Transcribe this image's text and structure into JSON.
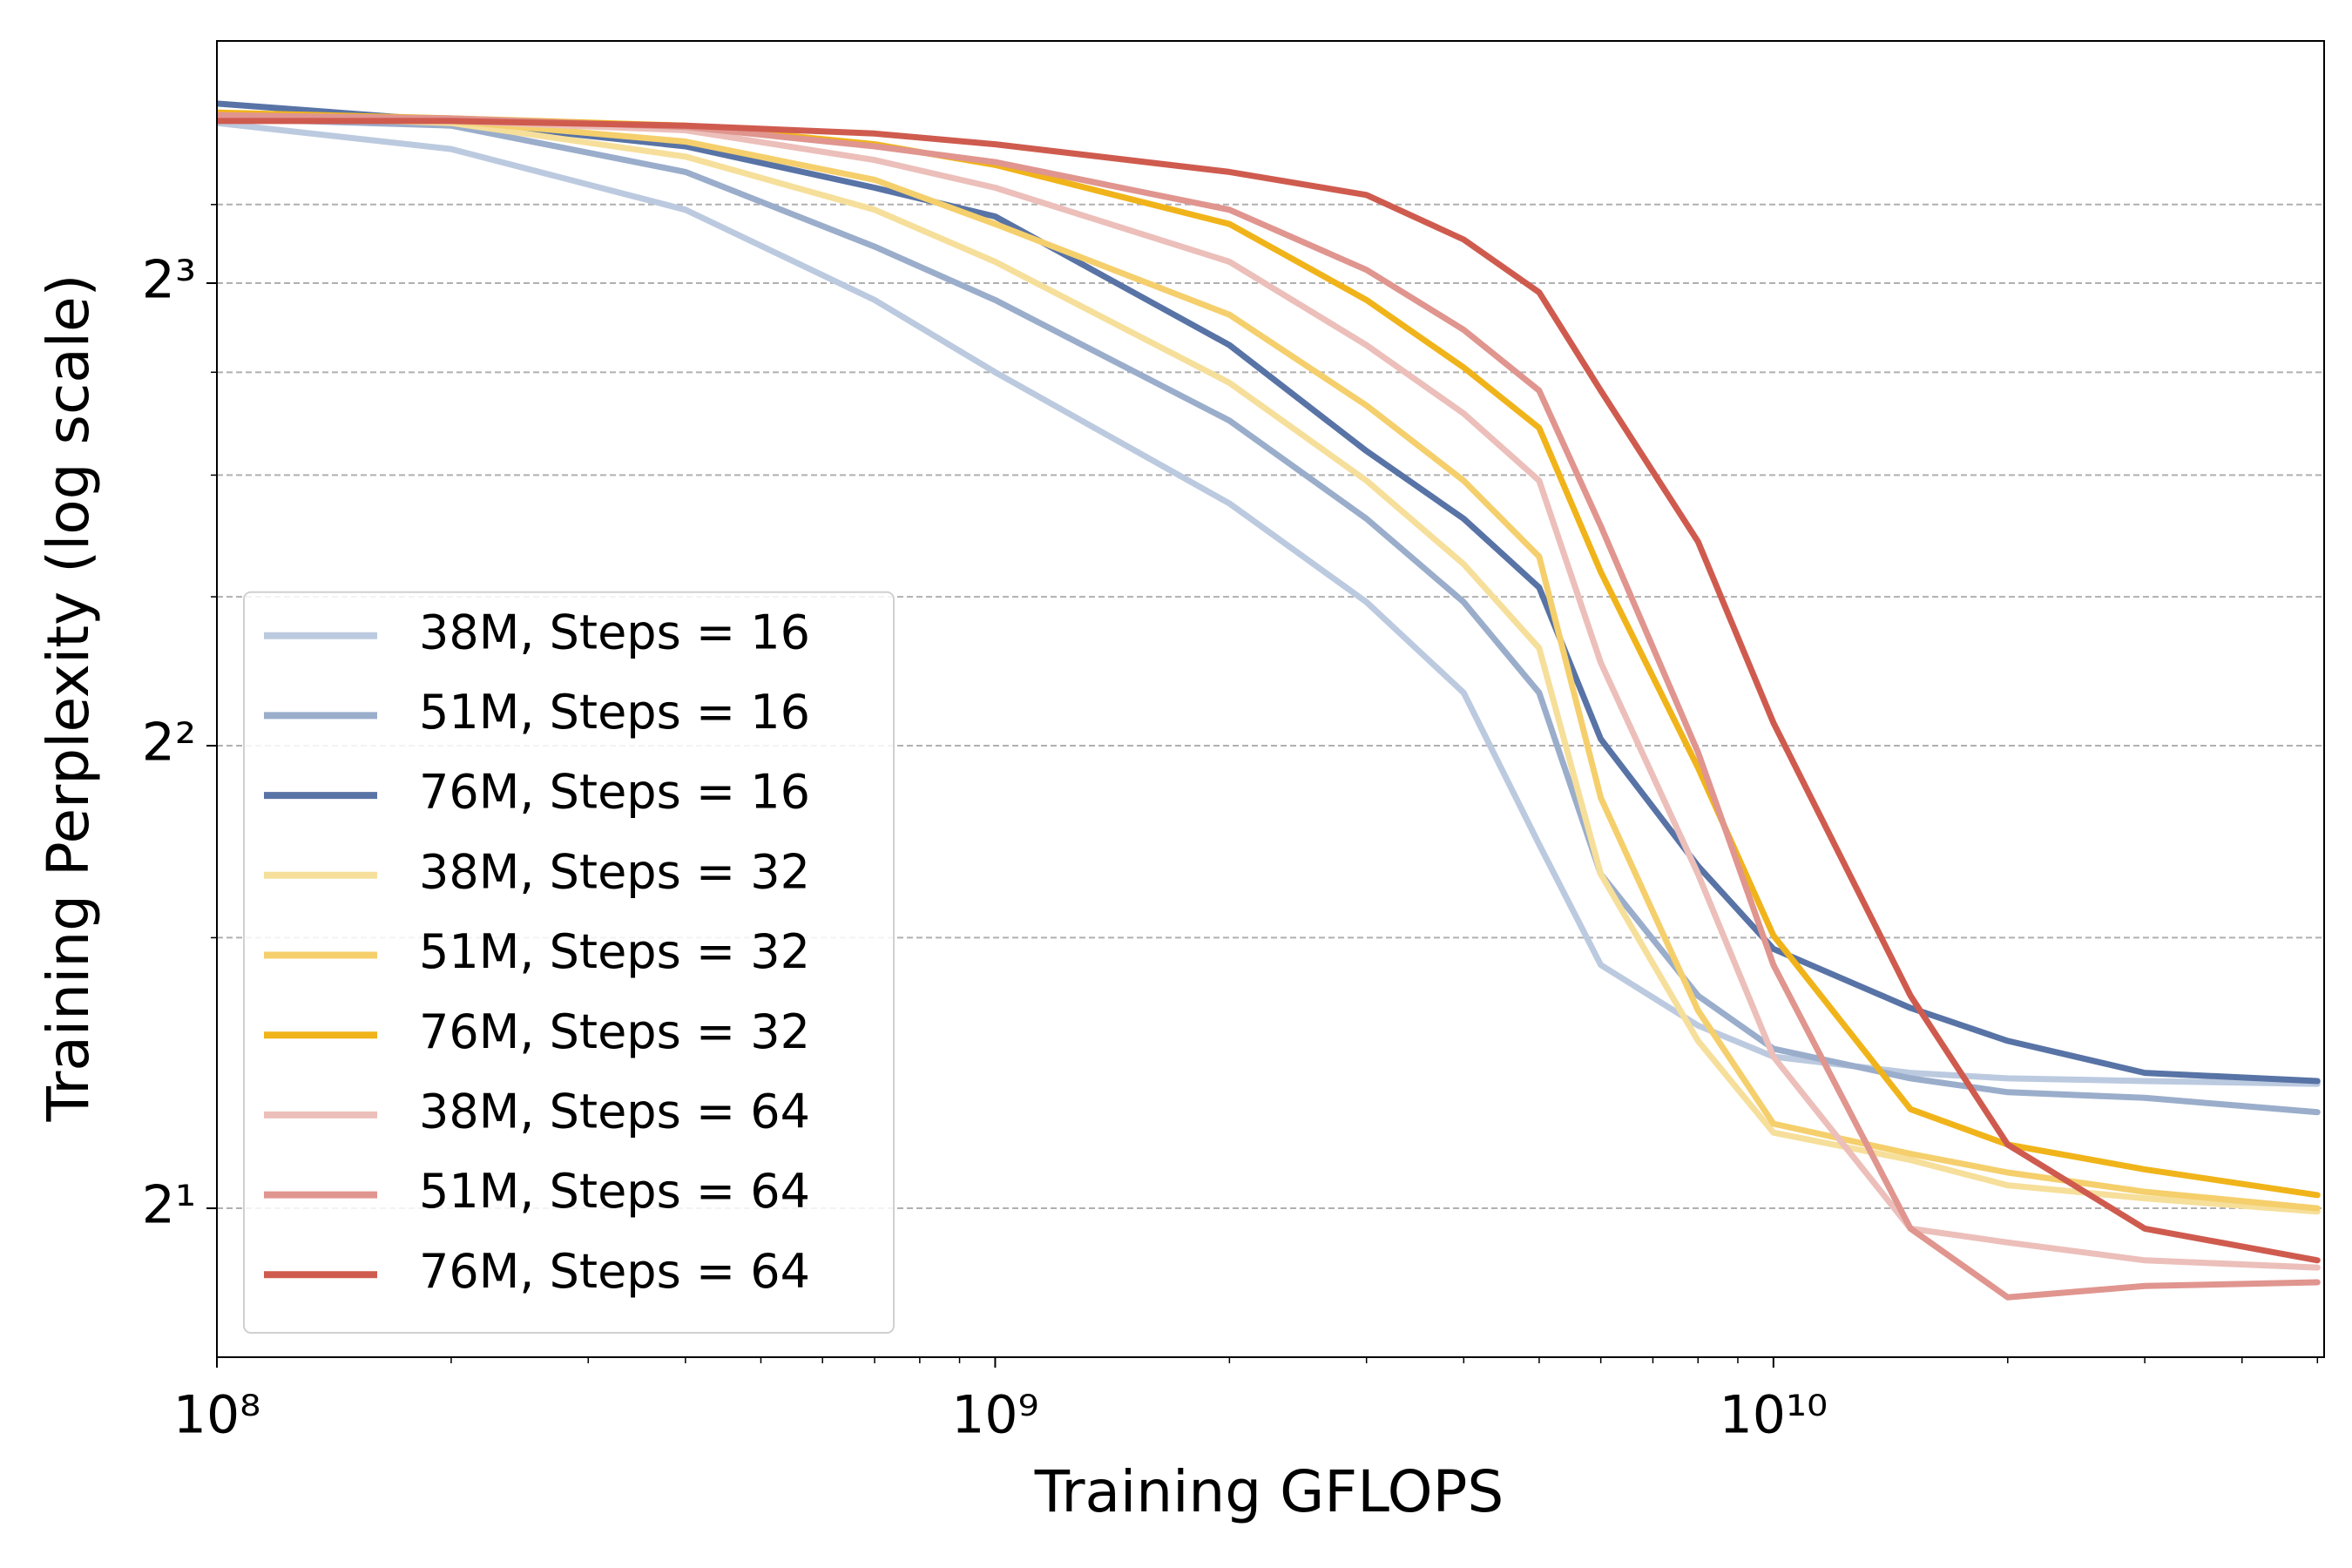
{
  "chart_data": {
    "type": "line",
    "xlabel": "Training GFLOPS",
    "ylabel": "Training Perplexity (log scale)",
    "xscale": "log",
    "yscale": "log",
    "yscale_base": 2,
    "xlim": [
      100000000.0,
      51000000000.0
    ],
    "ylim": [
      1.6,
      11.5
    ],
    "xticks": [
      {
        "value": 100000000.0,
        "label": "10⁸"
      },
      {
        "value": 1000000000.0,
        "label": "10⁹"
      },
      {
        "value": 10000000000.0,
        "label": "10¹⁰"
      }
    ],
    "xminorticks": [
      200000000.0,
      300000000.0,
      400000000.0,
      500000000.0,
      600000000.0,
      700000000.0,
      800000000.0,
      900000000.0,
      2000000000.0,
      3000000000.0,
      4000000000.0,
      5000000000.0,
      6000000000.0,
      7000000000.0,
      8000000000.0,
      9000000000.0,
      20000000000.0,
      30000000000.0,
      40000000000.0,
      50000000000.0
    ],
    "yticks": [
      {
        "value": 2,
        "label": "2¹"
      },
      {
        "value": 4,
        "label": "2²"
      },
      {
        "value": 8,
        "label": "2³"
      }
    ],
    "yminorticks": [
      3,
      5,
      6,
      7,
      9
    ],
    "grid": true,
    "legend": "lower left",
    "x": [
      100000000.0,
      200000000.0,
      400000000.0,
      700000000.0,
      1000000000.0,
      2000000000.0,
      3000000000.0,
      4000000000.0,
      5000000000.0,
      6000000000.0,
      8000000000.0,
      10000000000.0,
      15000000000.0,
      20000000000.0,
      30000000000.0,
      50000000000.0
    ],
    "series": [
      {
        "name": "38M, Steps = 16",
        "color": "#bccae0",
        "values": [
          10.17,
          9.78,
          8.93,
          7.8,
          7.0,
          5.75,
          4.96,
          4.33,
          3.45,
          2.88,
          2.63,
          2.51,
          2.45,
          2.43,
          2.42,
          2.41
        ]
      },
      {
        "name": "51M, Steps = 16",
        "color": "#9aadcb",
        "values": [
          10.24,
          10.13,
          9.45,
          8.45,
          7.8,
          6.51,
          5.62,
          4.96,
          4.33,
          3.3,
          2.75,
          2.54,
          2.43,
          2.38,
          2.36,
          2.31
        ]
      },
      {
        "name": "76M, Steps = 16",
        "color": "#5873a5",
        "values": [
          10.47,
          10.2,
          9.82,
          9.23,
          8.84,
          7.29,
          6.22,
          5.62,
          5.07,
          4.04,
          3.34,
          2.95,
          2.7,
          2.57,
          2.45,
          2.42
        ]
      },
      {
        "name": "38M, Steps = 32",
        "color": "#f6df9a",
        "values": [
          10.29,
          10.17,
          9.67,
          8.93,
          8.26,
          6.89,
          5.95,
          5.25,
          4.63,
          3.3,
          2.57,
          2.24,
          2.15,
          2.07,
          2.03,
          1.99
        ]
      },
      {
        "name": "51M, Steps = 32",
        "color": "#f5cf6c",
        "values": [
          10.29,
          10.2,
          9.89,
          9.34,
          8.74,
          7.63,
          6.66,
          5.95,
          5.31,
          3.7,
          2.69,
          2.27,
          2.17,
          2.11,
          2.05,
          2.0
        ]
      },
      {
        "name": "76M, Steps = 32",
        "color": "#f0b41a",
        "values": [
          10.33,
          10.24,
          10.13,
          9.85,
          9.55,
          8.74,
          7.8,
          7.05,
          6.44,
          5.19,
          3.87,
          3.01,
          2.32,
          2.2,
          2.12,
          2.04
        ]
      },
      {
        "name": "38M, Steps = 64",
        "color": "#ecbfba",
        "values": [
          10.29,
          10.2,
          10.06,
          9.62,
          9.23,
          8.26,
          7.29,
          6.58,
          5.95,
          4.53,
          3.3,
          2.51,
          1.94,
          1.9,
          1.85,
          1.83
        ]
      },
      {
        "name": "51M, Steps = 64",
        "color": "#e0958f",
        "values": [
          10.29,
          10.24,
          10.11,
          9.82,
          9.59,
          8.93,
          8.16,
          7.46,
          6.81,
          5.56,
          3.96,
          2.88,
          1.94,
          1.75,
          1.78,
          1.79
        ]
      },
      {
        "name": "76M, Steps = 64",
        "color": "#cf5b4f",
        "values": [
          10.2,
          10.2,
          10.13,
          10.01,
          9.85,
          9.45,
          9.13,
          8.54,
          7.89,
          6.81,
          5.43,
          4.14,
          2.75,
          2.2,
          1.94,
          1.85
        ]
      }
    ]
  }
}
